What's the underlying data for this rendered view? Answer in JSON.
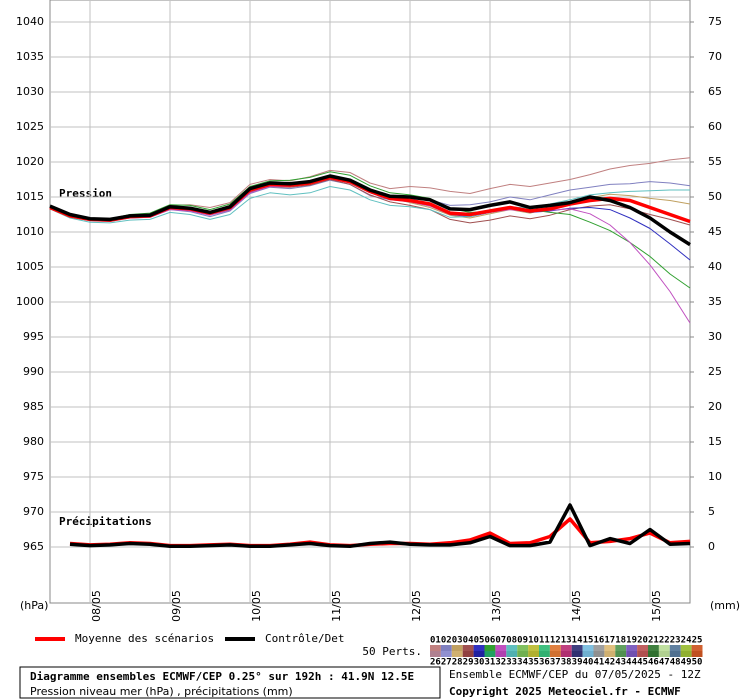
{
  "chart_data": {
    "type": "line",
    "title": "Diagramme ensembles ECMWF/CEP 0.25° sur 192h : 41.9N 12.5E",
    "subtitle": "Pression niveau mer (hPa) , précipitations (mm)",
    "run_label": "Ensemble ECMWF/CEP du 07/05/2025 - 12Z",
    "copyright": "Copyright 2025 Meteociel.fr - ECMWF",
    "annotations": [
      "Pression",
      "Précipitations"
    ],
    "y_label": "(hPa)",
    "y2_label": "(mm)",
    "grid": true,
    "x": [
      0,
      6,
      12,
      18,
      24,
      30,
      36,
      42,
      48,
      54,
      60,
      66,
      72,
      78,
      84,
      90,
      96,
      102,
      108,
      114,
      120,
      126,
      132,
      138,
      144,
      150,
      156,
      162,
      168,
      174,
      180,
      186,
      192
    ],
    "xlim": [
      0,
      192
    ],
    "xticks": [
      {
        "value": 12,
        "label": "08/05"
      },
      {
        "value": 36,
        "label": "09/05"
      },
      {
        "value": 60,
        "label": "10/05"
      },
      {
        "value": 84,
        "label": "11/05"
      },
      {
        "value": 108,
        "label": "12/05"
      },
      {
        "value": 132,
        "label": "13/05"
      },
      {
        "value": 156,
        "label": "14/05"
      },
      {
        "value": 180,
        "label": "15/05"
      }
    ],
    "ylim": [
      957,
      1043
    ],
    "yticks": [
      965,
      970,
      975,
      980,
      985,
      990,
      995,
      1000,
      1005,
      1010,
      1015,
      1020,
      1025,
      1030,
      1035,
      1040
    ],
    "y2lim": [
      -8,
      78
    ],
    "y2ticks": [
      0,
      5,
      10,
      15,
      20,
      25,
      30,
      35,
      40,
      45,
      50,
      55,
      60,
      65,
      70,
      75
    ],
    "series": [
      {
        "name": "Moyenne des scénarios",
        "color": "#ff0000",
        "values": [
          1013.5,
          1012.3,
          1011.8,
          1011.7,
          1012.2,
          1012.3,
          1013.5,
          1013.3,
          1012.7,
          1013.5,
          1016,
          1016.8,
          1016.7,
          1017,
          1017.8,
          1017.2,
          1015.8,
          1014.8,
          1014.5,
          1014,
          1012.7,
          1012.5,
          1013,
          1013.5,
          1013,
          1013.3,
          1014,
          1014.5,
          1014.8,
          1014.5,
          1013.5,
          1012.5,
          1011.5
        ]
      },
      {
        "name": "Contrôle/Det",
        "color": "#000000",
        "values": [
          1013.7,
          1012.5,
          1011.9,
          1011.8,
          1012.3,
          1012.4,
          1013.6,
          1013.4,
          1012.8,
          1013.6,
          1016.2,
          1017,
          1016.9,
          1017.2,
          1018,
          1017.4,
          1016,
          1015.1,
          1015,
          1014.6,
          1013.3,
          1013.2,
          1013.8,
          1014.3,
          1013.5,
          1013.8,
          1014.2,
          1015,
          1014.5,
          1013.5,
          1012,
          1010,
          1008.2
        ]
      },
      {
        "axis": "y2",
        "color": "#ff0000",
        "values": [
          null,
          0.5,
          0.3,
          0.4,
          0.6,
          0.5,
          0.2,
          0.2,
          0.3,
          0.4,
          0.2,
          0.2,
          0.4,
          0.7,
          0.3,
          0.2,
          0.4,
          0.5,
          0.5,
          0.4,
          0.6,
          1.0,
          2.0,
          0.5,
          0.6,
          1.5,
          4.0,
          0.6,
          0.8,
          1.2,
          2.0,
          0.6,
          0.8
        ]
      },
      {
        "axis": "y2",
        "color": "#000000",
        "values": [
          null,
          0.4,
          0.2,
          0.3,
          0.5,
          0.4,
          0.1,
          0.1,
          0.2,
          0.3,
          0.1,
          0.1,
          0.3,
          0.5,
          0.2,
          0.1,
          0.5,
          0.7,
          0.4,
          0.3,
          0.3,
          0.6,
          1.5,
          0.2,
          0.2,
          0.7,
          6.0,
          0.2,
          1.2,
          0.5,
          2.5,
          0.4,
          0.5
        ]
      }
    ],
    "perturbations": {
      "label": "50 Perts.",
      "members": [
        {
          "name": "01",
          "color": "#c08080",
          "values": [
            1013.6,
            1012.5,
            1012,
            1011.9,
            1012.4,
            1012.6,
            1013.8,
            1013.9,
            1013.5,
            1014.2,
            1016.8,
            1017.5,
            1017.3,
            1017.9,
            1018.8,
            1018.5,
            1017,
            1016.2,
            1016.5,
            1016.3,
            1015.8,
            1015.5,
            1016.2,
            1016.8,
            1016.5,
            1017,
            1017.5,
            1018.2,
            1019,
            1019.5,
            1019.8,
            1020.3,
            1020.6
          ]
        },
        {
          "name": "02",
          "color": "#8080c0",
          "values": [
            1013.4,
            1012.2,
            1011.6,
            1011.5,
            1012,
            1012.1,
            1013.2,
            1012.9,
            1012.2,
            1013,
            1015.5,
            1016.4,
            1016.2,
            1016.6,
            1017.4,
            1016.8,
            1015.2,
            1014.6,
            1014.7,
            1014.6,
            1013.8,
            1013.9,
            1014.3,
            1015,
            1014.6,
            1015.3,
            1016,
            1016.4,
            1016.8,
            1016.9,
            1017.2,
            1017,
            1016.6
          ]
        },
        {
          "name": "03",
          "color": "#c0a060",
          "values": [
            1013.5,
            1012.4,
            1011.9,
            1011.8,
            1012.3,
            1012.5,
            1013.6,
            1013.4,
            1012.9,
            1013.8,
            1016.2,
            1017,
            1016.9,
            1017.3,
            1018,
            1017.5,
            1016,
            1014.9,
            1014.2,
            1013.5,
            1012.4,
            1012,
            1012.6,
            1013.2,
            1012.7,
            1013.4,
            1014.2,
            1014.9,
            1015.4,
            1015.2,
            1014.8,
            1014.5,
            1014
          ]
        },
        {
          "name": "04",
          "color": "#a05050",
          "values": [
            1013.5,
            1012.3,
            1011.7,
            1011.6,
            1012.1,
            1012.2,
            1013.4,
            1013.1,
            1012.5,
            1013.2,
            1015.7,
            1016.5,
            1016.4,
            1016.7,
            1017.5,
            1016.8,
            1015.3,
            1014.3,
            1013.8,
            1013.2,
            1011.8,
            1011.3,
            1011.7,
            1012.3,
            1011.9,
            1012.4,
            1013.2,
            1013.7,
            1013.9,
            1013.3,
            1012.5,
            1011.8,
            1011
          ]
        },
        {
          "name": "05",
          "color": "#3030c0",
          "values": [
            1013.5,
            1012.3,
            1011.8,
            1011.7,
            1012.2,
            1012.3,
            1013.5,
            1013.3,
            1012.7,
            1013.4,
            1015.9,
            1016.8,
            1016.8,
            1017.2,
            1018,
            1017.4,
            1016,
            1015,
            1014.6,
            1013.9,
            1012.5,
            1012.2,
            1012.8,
            1013.3,
            1012.8,
            1013,
            1013.4,
            1013.5,
            1013.2,
            1012,
            1010.5,
            1008.3,
            1006
          ]
        },
        {
          "name": "06",
          "color": "#30a030",
          "values": [
            1013.7,
            1012.6,
            1012,
            1011.9,
            1012.5,
            1012.7,
            1013.9,
            1013.8,
            1013.2,
            1014,
            1016.5,
            1017.3,
            1017.4,
            1017.8,
            1018.6,
            1018.1,
            1016.6,
            1015.6,
            1015.3,
            1014.8,
            1013.4,
            1012.8,
            1012.9,
            1013.6,
            1013.2,
            1012.8,
            1012.5,
            1011.4,
            1010.2,
            1008.5,
            1006.5,
            1004,
            1002
          ]
        },
        {
          "name": "07",
          "color": "#c050c0",
          "values": [
            1013.4,
            1012.2,
            1011.7,
            1011.6,
            1012,
            1012.1,
            1013.2,
            1013,
            1012.4,
            1013.1,
            1015.6,
            1016.5,
            1016.5,
            1016.9,
            1017.6,
            1017,
            1015.6,
            1014.6,
            1014.3,
            1013.7,
            1012.5,
            1012.3,
            1012.8,
            1013.2,
            1012.9,
            1013.1,
            1013.3,
            1012.6,
            1011,
            1008.5,
            1005.3,
            1001.5,
            997
          ]
        },
        {
          "name": "08",
          "color": "#60c0c0",
          "values": [
            1013.3,
            1012,
            1011.4,
            1011.3,
            1011.7,
            1011.8,
            1012.8,
            1012.5,
            1011.8,
            1012.5,
            1014.8,
            1015.6,
            1015.3,
            1015.6,
            1016.5,
            1016,
            1014.6,
            1013.8,
            1013.6,
            1013.2,
            1012.1,
            1012.2,
            1012.9,
            1013.6,
            1013.4,
            1014,
            1014.6,
            1015.3,
            1015.6,
            1015.8,
            1015.9,
            1016,
            1016
          ]
        },
        {
          "name": "09",
          "color": "#80c060"
        },
        {
          "name": "10",
          "color": "#c0c040"
        },
        {
          "name": "11",
          "color": "#40c080"
        },
        {
          "name": "12",
          "color": "#e08040"
        },
        {
          "name": "13",
          "color": "#c04080"
        },
        {
          "name": "14",
          "color": "#404080"
        },
        {
          "name": "15",
          "color": "#80c0e0"
        },
        {
          "name": "16",
          "color": "#a0a0a0"
        },
        {
          "name": "17",
          "color": "#e0c080"
        },
        {
          "name": "18",
          "color": "#60a060"
        },
        {
          "name": "19",
          "color": "#8060c0"
        },
        {
          "name": "20",
          "color": "#c06060"
        },
        {
          "name": "21",
          "color": "#408040"
        },
        {
          "name": "22",
          "color": "#c0e0a0"
        },
        {
          "name": "23",
          "color": "#6080a0"
        },
        {
          "name": "24",
          "color": "#a0c040"
        },
        {
          "name": "25",
          "color": "#d06030"
        },
        {
          "name": "26",
          "color": "#b08090"
        },
        {
          "name": "27",
          "color": "#9090d0"
        },
        {
          "name": "28",
          "color": "#d0b070"
        },
        {
          "name": "29",
          "color": "#904040"
        },
        {
          "name": "30",
          "color": "#2020a0"
        },
        {
          "name": "31",
          "color": "#20a060"
        },
        {
          "name": "32",
          "color": "#b040b0"
        },
        {
          "name": "33",
          "color": "#50b0b0"
        },
        {
          "name": "34",
          "color": "#70b050"
        },
        {
          "name": "35",
          "color": "#b0b030"
        },
        {
          "name": "36",
          "color": "#30b070"
        },
        {
          "name": "37",
          "color": "#d07030"
        },
        {
          "name": "38",
          "color": "#b03070"
        },
        {
          "name": "39",
          "color": "#303070"
        },
        {
          "name": "40",
          "color": "#70b0d0"
        },
        {
          "name": "41",
          "color": "#909090"
        },
        {
          "name": "42",
          "color": "#d0b070"
        },
        {
          "name": "43",
          "color": "#509050"
        },
        {
          "name": "44",
          "color": "#7050b0"
        },
        {
          "name": "45",
          "color": "#b05050"
        },
        {
          "name": "46",
          "color": "#307030"
        },
        {
          "name": "47",
          "color": "#b0d090"
        },
        {
          "name": "48",
          "color": "#507090"
        },
        {
          "name": "49",
          "color": "#90b030"
        },
        {
          "name": "50",
          "color": "#c05020"
        }
      ]
    }
  }
}
